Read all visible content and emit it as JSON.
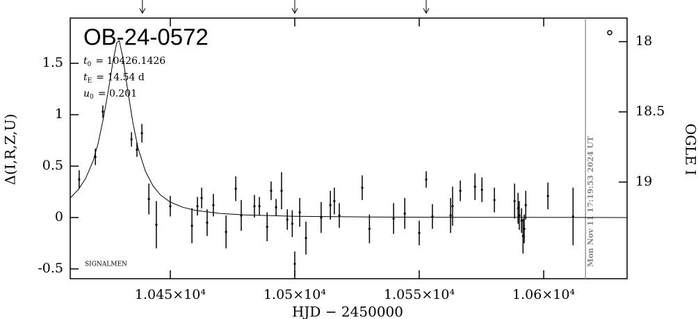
{
  "chart_data": {
    "type": "lightcurve",
    "title": "OB-24-0572",
    "params": [
      {
        "symbol": "t",
        "sub": "0",
        "text": "= 10426.1426"
      },
      {
        "symbol": "t",
        "sub": "E",
        "text": "= 14.54 d"
      },
      {
        "symbol": "u",
        "sub": "0",
        "text": "= 0.201"
      }
    ],
    "credit": "SIGNALMEN",
    "timestamp": "Mon Nov 11 17:19:53 2024 UT",
    "timestamp_x": 10616.8,
    "markers_x": [
      10438.8,
      10500,
      10552.8
    ],
    "x_label": "HJD − 2450000",
    "y_label": "Δ(I,R,Z,U)",
    "y2_label": "OGLE I",
    "color": "#000000",
    "xlim": [
      10409.8,
      10633.5
    ],
    "ylim": [
      -0.595,
      1.94
    ],
    "y2lim": [
      19.688,
      17.832
    ],
    "xticks": [
      {
        "value": 10450,
        "label": "1.045×10⁴"
      },
      {
        "value": 10500,
        "label": "1.05×10⁴"
      },
      {
        "value": 10550,
        "label": "1.055×10⁴"
      },
      {
        "value": 10600,
        "label": "1.06×10⁴"
      }
    ],
    "yticks": [
      -0.5,
      0,
      0.5,
      1,
      1.5
    ],
    "y2ticks": [
      18,
      18.5,
      19
    ],
    "points": {
      "x": [
        10413.4,
        10419.9,
        10422.9,
        10434.4,
        10436.6,
        10438.6,
        10441.4,
        10444.4,
        10450,
        10458.7,
        10460.9,
        10462.6,
        10464.8,
        10467.3,
        10472.4,
        10476.3,
        10478.5,
        10483.8,
        10485.8,
        10488.9,
        10490.5,
        10492.5,
        10494.7,
        10497,
        10499,
        10500,
        10502,
        10504.5,
        10510.6,
        10514.3,
        10515.9,
        10517.9,
        10527.1,
        10530,
        10539.7,
        10544.2,
        10550,
        10552.8,
        10555.3,
        10562.6,
        10563.4,
        10566.5,
        10572.4,
        10575.2,
        10580.2,
        10588.3,
        10589.7,
        10590.2,
        10591.1,
        10591.7,
        10592.2,
        10592.8,
        10601.7,
        10611.8
      ],
      "values": [
        0.37,
        0.59,
        1.03,
        0.76,
        0.66,
        0.82,
        0.18,
        -0.07,
        0.11,
        -0.08,
        0.11,
        0.19,
        -0.05,
        0.12,
        -0.14,
        0.28,
        0.02,
        0.11,
        0.11,
        -0.09,
        0.26,
        0.1,
        0.26,
        -0.02,
        -0.06,
        -0.45,
        0.05,
        -0.2,
        0.0,
        0.12,
        0.16,
        0.02,
        0.29,
        -0.11,
        -0.01,
        0.04,
        -0.15,
        0.37,
        0.01,
        0.02,
        0.11,
        0.26,
        0.3,
        0.27,
        0.17,
        0.16,
        0.09,
        0.02,
        -0.03,
        -0.18,
        -0.11,
        0.12,
        0.21,
        0.01
      ],
      "errors": [
        0.09,
        0.08,
        0.06,
        0.07,
        0.07,
        0.09,
        0.15,
        0.23,
        0.1,
        0.17,
        0.09,
        0.1,
        0.13,
        0.11,
        0.16,
        0.12,
        0.15,
        0.11,
        0.09,
        0.14,
        0.09,
        0.08,
        0.18,
        0.1,
        0.13,
        0.12,
        0.14,
        0.16,
        0.15,
        0.14,
        0.13,
        0.12,
        0.12,
        0.14,
        0.15,
        0.15,
        0.12,
        0.08,
        0.12,
        0.17,
        0.19,
        0.1,
        0.13,
        0.12,
        0.12,
        0.17,
        0.15,
        0.14,
        0.12,
        0.17,
        0.14,
        0.14,
        0.13,
        0.28
      ]
    },
    "model": {
      "x": [
        10409.8,
        10413,
        10416,
        10419,
        10421,
        10423,
        10425,
        10427,
        10428.5,
        10429.5,
        10431,
        10433,
        10435,
        10437,
        10440,
        10443,
        10446,
        10450,
        10455,
        10460,
        10470,
        10480,
        10500,
        10530,
        10570,
        10633.5
      ],
      "values": [
        0.19,
        0.27,
        0.38,
        0.55,
        0.72,
        0.95,
        1.22,
        1.52,
        1.7,
        1.72,
        1.55,
        1.22,
        0.92,
        0.68,
        0.45,
        0.31,
        0.22,
        0.15,
        0.1,
        0.07,
        0.04,
        0.025,
        0.012,
        0.005,
        0.002,
        0
      ]
    }
  }
}
